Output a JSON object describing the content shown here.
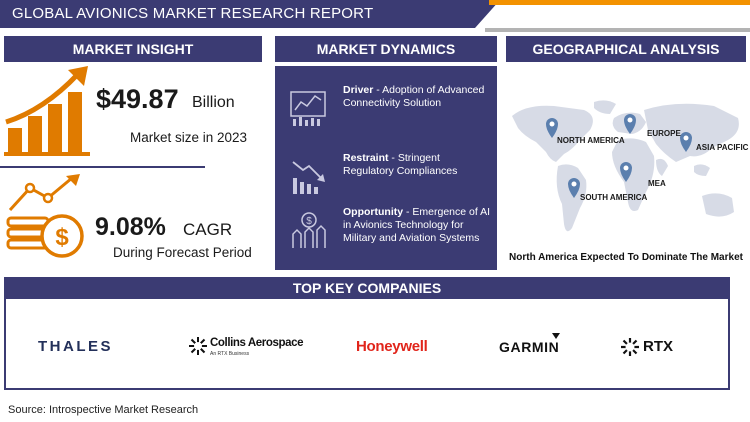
{
  "title": "GLOBAL AVIONICS MARKET RESEARCH REPORT",
  "market_insight": {
    "heading": "MARKET INSIGHT",
    "size_value": "$49.87",
    "size_unit": "Billion",
    "size_caption": "Market size in 2023",
    "cagr_value": "9.08%",
    "cagr_label": "CAGR",
    "cagr_caption": "During Forecast Period"
  },
  "market_dynamics": {
    "heading": "MARKET DYNAMICS",
    "items": [
      {
        "label": "Driver",
        "sep": " - ",
        "text": "Adoption of Advanced Connectivity Solution"
      },
      {
        "label": "Restraint",
        "sep": " - ",
        "text": "Stringent Regulatory Compliances"
      },
      {
        "label": "Opportunity",
        "sep": " - ",
        "text": "Emergence of AI in Avionics Technology for Military and Aviation Systems"
      }
    ]
  },
  "geography": {
    "heading": "GEOGRAPHICAL ANALYSIS",
    "regions": [
      "NORTH AMERICA",
      "EUROPE",
      "ASIA PACIFIC",
      "MEA",
      "SOUTH AMERICA"
    ],
    "caption": "North America Expected To Dominate The Market"
  },
  "companies": {
    "heading": "TOP KEY COMPANIES",
    "logos": [
      "THALES",
      "Collins Aerospace",
      "An RTX Business",
      "Honeywell",
      "GARMIN",
      "RTX"
    ]
  },
  "source": "Source: Introspective Market Research",
  "colors": {
    "navy": "#3b3b73",
    "orange": "#f39200",
    "honeywell_red": "#e1251b"
  }
}
